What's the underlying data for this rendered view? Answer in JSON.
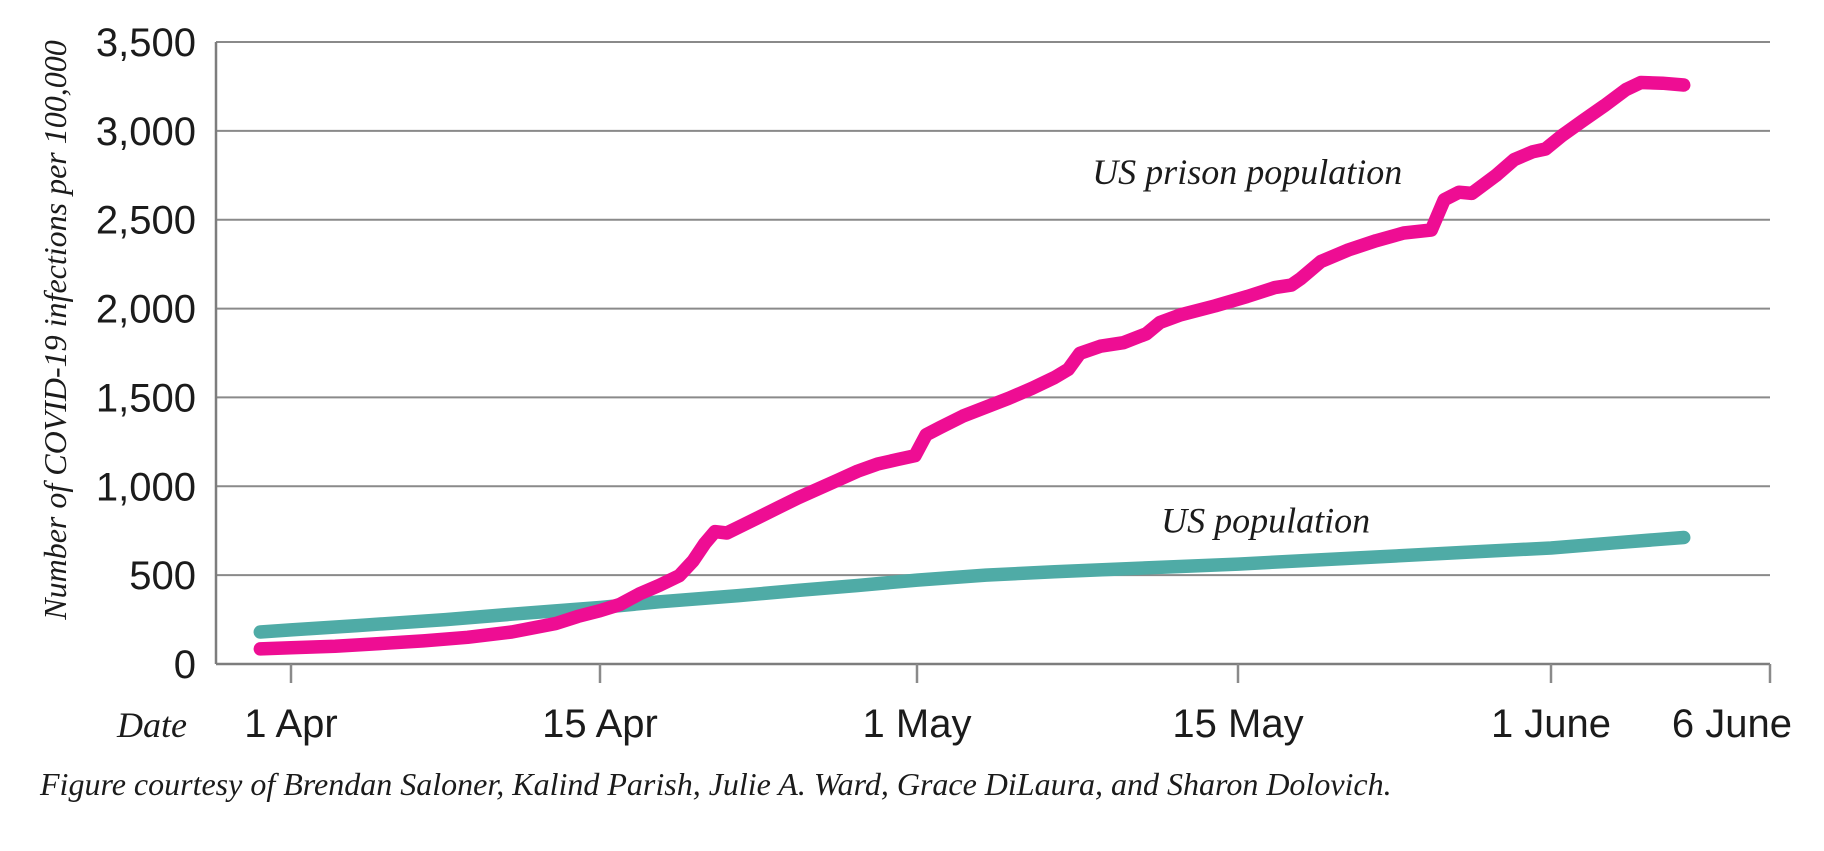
{
  "figure": {
    "caption": "Figure courtesy of Brendan Saloner, Kalind Parish, Julie A. Ward, Grace DiLaura, and Sharon Dolovich."
  },
  "chart_data": {
    "type": "line",
    "title": "",
    "xlabel": "Date",
    "ylabel": "Number of COVID-19 infections per 100,000",
    "x_unit": "days since 1 April 2020",
    "xlim_days": [
      -2,
      72
    ],
    "ylim": [
      0,
      3500
    ],
    "grid": "horizontal",
    "legend_position": "inline-annotations",
    "colors": {
      "prison_line": "#EE0D93",
      "population_line": "#4FABA6",
      "grid": "#8a8a8a",
      "axis": "#7d7d7d",
      "text": "#1b1b1b"
    },
    "y_ticks": [
      {
        "label": "0",
        "value": 0
      },
      {
        "label": "500",
        "value": 500
      },
      {
        "label": "1,000",
        "value": 1000
      },
      {
        "label": "1,500",
        "value": 1500
      },
      {
        "label": "2,000",
        "value": 2000
      },
      {
        "label": "2,500",
        "value": 2500
      },
      {
        "label": "3,000",
        "value": 3000
      },
      {
        "label": "3,500",
        "value": 3500
      }
    ],
    "x_ticks": [
      {
        "label": "1 Apr",
        "day": 0
      },
      {
        "label": "15 Apr",
        "day": 14
      },
      {
        "label": "1 May",
        "day": 30
      },
      {
        "label": "15 May",
        "day": 44
      },
      {
        "label": "1 June",
        "day": 61
      },
      {
        "label": "6 June",
        "day": 72,
        "align": "end"
      }
    ],
    "annotations": [
      {
        "id": "annotation-us-prison",
        "text": "US prison population",
        "day": 44.5,
        "value": 2768
      },
      {
        "id": "annotation-us-population",
        "text": "US population",
        "day": 45.5,
        "value": 808
      }
    ],
    "series": [
      {
        "id": "series-us-population-line",
        "name": "US population",
        "color": "#4FABA6",
        "points": [
          [
            -1.5,
            180
          ],
          [
            0,
            192
          ],
          [
            3,
            216
          ],
          [
            7,
            250
          ],
          [
            10,
            280
          ],
          [
            14,
            318
          ],
          [
            17,
            350
          ],
          [
            21,
            385
          ],
          [
            24,
            414
          ],
          [
            27,
            442
          ],
          [
            30,
            472
          ],
          [
            33,
            500
          ],
          [
            36,
            519
          ],
          [
            40,
            541
          ],
          [
            44,
            562
          ],
          [
            48,
            584
          ],
          [
            52,
            605
          ],
          [
            56,
            627
          ],
          [
            61,
            653
          ],
          [
            64,
            682
          ],
          [
            67.2,
            712
          ]
        ]
      },
      {
        "id": "series-us-prison-line",
        "name": "US prison population",
        "color": "#EE0D93",
        "points": [
          [
            -1.5,
            85
          ],
          [
            0,
            92
          ],
          [
            2,
            100
          ],
          [
            4,
            115
          ],
          [
            6,
            130
          ],
          [
            8,
            150
          ],
          [
            10,
            180
          ],
          [
            12,
            228
          ],
          [
            13,
            268
          ],
          [
            14,
            300
          ],
          [
            15,
            335
          ],
          [
            16,
            395
          ],
          [
            17,
            443
          ],
          [
            18,
            497
          ],
          [
            18.7,
            580
          ],
          [
            19.3,
            680
          ],
          [
            19.8,
            745
          ],
          [
            20.4,
            737
          ],
          [
            21,
            770
          ],
          [
            22,
            825
          ],
          [
            23,
            880
          ],
          [
            24,
            935
          ],
          [
            25,
            985
          ],
          [
            26,
            1035
          ],
          [
            27,
            1085
          ],
          [
            28,
            1125
          ],
          [
            29,
            1150
          ],
          [
            29.9,
            1172
          ],
          [
            30.4,
            1290
          ],
          [
            31,
            1330
          ],
          [
            32,
            1395
          ],
          [
            33,
            1445
          ],
          [
            34,
            1495
          ],
          [
            35,
            1550
          ],
          [
            36,
            1612
          ],
          [
            36.6,
            1658
          ],
          [
            37.1,
            1748
          ],
          [
            38,
            1788
          ],
          [
            39,
            1808
          ],
          [
            40,
            1858
          ],
          [
            40.6,
            1922
          ],
          [
            41.5,
            1965
          ],
          [
            43,
            2015
          ],
          [
            44.5,
            2068
          ],
          [
            46,
            2118
          ],
          [
            46.9,
            2132
          ],
          [
            47.4,
            2168
          ],
          [
            48.5,
            2265
          ],
          [
            50,
            2330
          ],
          [
            51.5,
            2382
          ],
          [
            53,
            2425
          ],
          [
            54.5,
            2442
          ],
          [
            55.2,
            2612
          ],
          [
            56,
            2655
          ],
          [
            56.7,
            2648
          ],
          [
            58,
            2748
          ],
          [
            59,
            2838
          ],
          [
            60,
            2882
          ],
          [
            60.7,
            2898
          ],
          [
            61.5,
            2972
          ],
          [
            62.5,
            3058
          ],
          [
            63.5,
            3142
          ],
          [
            64.5,
            3232
          ],
          [
            65.2,
            3272
          ],
          [
            66.2,
            3268
          ],
          [
            67.2,
            3258
          ]
        ]
      }
    ]
  }
}
